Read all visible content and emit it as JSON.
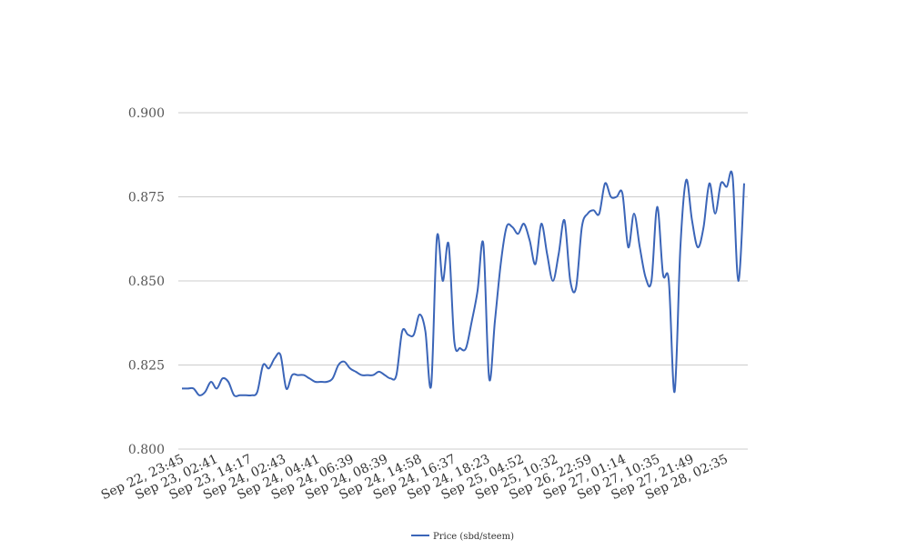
{
  "chart_data": {
    "type": "line",
    "title": "",
    "xlabel": "",
    "ylabel": "",
    "ylim": [
      0.8,
      0.9
    ],
    "yticks": [
      "0.800",
      "0.825",
      "0.850",
      "0.875",
      "0.900"
    ],
    "grid": true,
    "legend_position": "bottom",
    "x_tick_labels": [
      "Sep 22, 23:45",
      "Sep 23, 02:41",
      "Sep 23, 14:17",
      "Sep 24, 02:43",
      "Sep 24, 04:41",
      "Sep 24, 06:39",
      "Sep 24, 08:39",
      "Sep 24, 14:58",
      "Sep 24, 16:37",
      "Sep 24, 18:23",
      "Sep 25, 04:52",
      "Sep 25, 10:32",
      "Sep 26, 22:59",
      "Sep 27, 01:14",
      "Sep 27, 10:35",
      "Sep 27, 21:49",
      "Sep 28, 02:35"
    ],
    "series": [
      {
        "name": "Price (sbd/steem)",
        "color": "#3b65b8",
        "values": [
          0.818,
          0.818,
          0.818,
          0.816,
          0.817,
          0.82,
          0.818,
          0.821,
          0.82,
          0.816,
          0.816,
          0.816,
          0.816,
          0.817,
          0.825,
          0.824,
          0.827,
          0.828,
          0.818,
          0.822,
          0.822,
          0.822,
          0.821,
          0.82,
          0.82,
          0.82,
          0.821,
          0.825,
          0.826,
          0.824,
          0.823,
          0.822,
          0.822,
          0.822,
          0.823,
          0.822,
          0.821,
          0.822,
          0.835,
          0.834,
          0.834,
          0.84,
          0.835,
          0.819,
          0.863,
          0.85,
          0.861,
          0.832,
          0.83,
          0.83,
          0.838,
          0.847,
          0.861,
          0.821,
          0.838,
          0.855,
          0.866,
          0.866,
          0.864,
          0.867,
          0.862,
          0.855,
          0.867,
          0.858,
          0.85,
          0.858,
          0.868,
          0.85,
          0.848,
          0.866,
          0.87,
          0.871,
          0.87,
          0.879,
          0.875,
          0.875,
          0.876,
          0.86,
          0.87,
          0.86,
          0.851,
          0.85,
          0.872,
          0.852,
          0.85,
          0.817,
          0.86,
          0.88,
          0.868,
          0.86,
          0.866,
          0.879,
          0.87,
          0.879,
          0.878,
          0.881,
          0.85,
          0.879
        ]
      }
    ]
  }
}
